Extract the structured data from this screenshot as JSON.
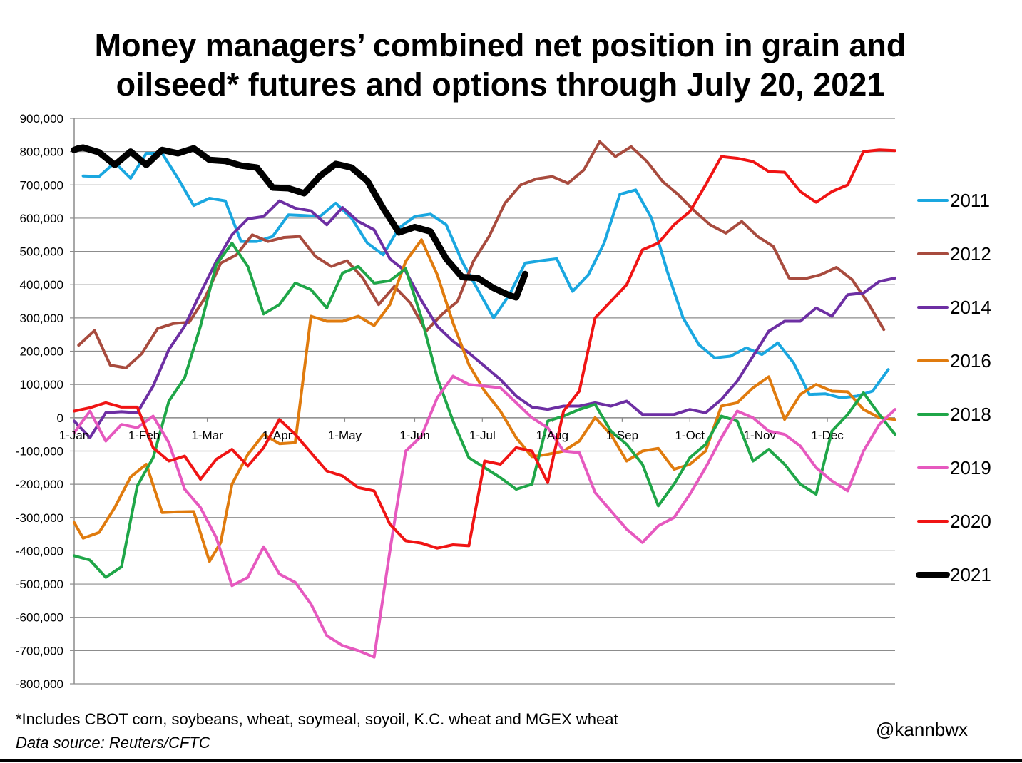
{
  "header": {
    "title_line1": "Money managers’ combined net position in grain and",
    "title_line2": "oilseed* futures and options through July 20, 2021"
  },
  "footer": {
    "note": "*Includes CBOT corn, soybeans, wheat, soymeal, soyoil, K.C. wheat and MGEX wheat",
    "source": "Data source: Reuters/CFTC",
    "handle": "@kannbwx"
  },
  "chart_data": {
    "type": "line",
    "title": "Money managers’ combined net position in grain and oilseed* futures and options through July 20, 2021",
    "xlabel": "",
    "ylabel": "",
    "x_unit": "day of year",
    "xlim": [
      1,
      365
    ],
    "ylim": [
      -800000,
      900000
    ],
    "grid": true,
    "legend_position": "right",
    "y_ticks": [
      900000,
      800000,
      700000,
      600000,
      500000,
      400000,
      300000,
      200000,
      100000,
      0,
      -100000,
      -200000,
      -300000,
      -400000,
      -500000,
      -600000,
      -700000,
      -800000
    ],
    "y_tick_labels": [
      "900,000",
      "800,000",
      "700,000",
      "600,000",
      "500,000",
      "400,000",
      "300,000",
      "200,000",
      "100,000",
      "0",
      "-100,000",
      "-200,000",
      "-300,000",
      "-400,000",
      "-500,000",
      "-600,000",
      "-700,000",
      "-800,000"
    ],
    "x_tick_labels": [
      "1-Jan",
      "1-Feb",
      "1-Mar",
      "1-Apr",
      "1-May",
      "1-Jun",
      "1-Jul",
      "1-Aug",
      "1-Sep",
      "1-Oct",
      "1-Nov",
      "1-Dec"
    ],
    "x_tick_days": [
      1,
      32,
      60,
      91,
      121,
      152,
      182,
      213,
      244,
      274,
      305,
      335
    ],
    "series": [
      {
        "name": "2011",
        "color": "#1aa7e0",
        "width": 4,
        "x": [
          5,
          12,
          19,
          26,
          33,
          40,
          47,
          54,
          61,
          68,
          75,
          82,
          89,
          96,
          103,
          110,
          117,
          124,
          131,
          138,
          145,
          152,
          159,
          166,
          173,
          180,
          187,
          194,
          201,
          208,
          215,
          222,
          229,
          236,
          243,
          250,
          257,
          264,
          271,
          278,
          285,
          292,
          299,
          306,
          313,
          320,
          327,
          334,
          341,
          348,
          355,
          362
        ],
        "y": [
          727000,
          725000,
          767000,
          720000,
          795000,
          795000,
          720000,
          638000,
          660000,
          652000,
          530000,
          530000,
          545000,
          610000,
          608000,
          605000,
          645000,
          600000,
          525000,
          490000,
          570000,
          605000,
          612000,
          580000,
          470000,
          385000,
          300000,
          370000,
          465000,
          472000,
          478000,
          380000,
          430000,
          525000,
          672000,
          685000,
          600000,
          440000,
          300000,
          220000,
          180000,
          185000,
          210000,
          190000,
          225000,
          165000,
          70000,
          72000,
          60000,
          65000,
          80000,
          145000
        ]
      },
      {
        "name": "2012",
        "color": "#a84b3e",
        "width": 4,
        "x": [
          3,
          10,
          17,
          24,
          31,
          38,
          45,
          52,
          59,
          66,
          73,
          80,
          87,
          94,
          101,
          108,
          115,
          122,
          129,
          136,
          143,
          150,
          157,
          164,
          171,
          178,
          185,
          192,
          199,
          206,
          213,
          220,
          227,
          234,
          241,
          248,
          255,
          262,
          269,
          276,
          283,
          290,
          297,
          304,
          311,
          318,
          325,
          332,
          339,
          346,
          353,
          360
        ],
        "y": [
          218000,
          262000,
          158000,
          150000,
          193000,
          268000,
          283000,
          287000,
          360000,
          465000,
          490000,
          550000,
          530000,
          542000,
          545000,
          485000,
          455000,
          472000,
          420000,
          340000,
          395000,
          345000,
          260000,
          310000,
          350000,
          470000,
          545000,
          645000,
          700000,
          718000,
          725000,
          705000,
          745000,
          830000,
          785000,
          815000,
          770000,
          710000,
          670000,
          622000,
          580000,
          555000,
          590000,
          545000,
          515000,
          420000,
          418000,
          430000,
          452000,
          415000,
          345000,
          265000
        ]
      },
      {
        "name": "2014",
        "color": "#6d2fa3",
        "width": 4,
        "x": [
          1,
          8,
          15,
          22,
          29,
          36,
          43,
          50,
          57,
          64,
          71,
          78,
          85,
          92,
          99,
          106,
          113,
          120,
          127,
          134,
          141,
          148,
          155,
          162,
          169,
          176,
          183,
          190,
          197,
          204,
          211,
          218,
          225,
          232,
          239,
          246,
          253,
          260,
          267,
          274,
          281,
          288,
          295,
          302,
          309,
          316,
          323,
          330,
          337,
          344,
          351,
          358,
          365
        ],
        "y": [
          -10000,
          -60000,
          15000,
          18000,
          15000,
          95000,
          205000,
          275000,
          375000,
          470000,
          550000,
          598000,
          605000,
          652000,
          630000,
          622000,
          580000,
          632000,
          590000,
          565000,
          478000,
          440000,
          352000,
          275000,
          230000,
          195000,
          155000,
          115000,
          65000,
          32000,
          25000,
          35000,
          35000,
          45000,
          35000,
          50000,
          10000,
          10000,
          10000,
          25000,
          15000,
          55000,
          110000,
          185000,
          260000,
          290000,
          290000,
          330000,
          305000,
          370000,
          375000,
          410000,
          420000
        ]
      },
      {
        "name": "2016",
        "color": "#e07b0e",
        "width": 4,
        "x": [
          1,
          5,
          12,
          19,
          26,
          33,
          40,
          47,
          54,
          61,
          66,
          71,
          78,
          85,
          92,
          99,
          106,
          113,
          120,
          127,
          134,
          141,
          148,
          155,
          162,
          169,
          176,
          183,
          190,
          197,
          204,
          211,
          218,
          225,
          232,
          239,
          246,
          253,
          260,
          267,
          274,
          281,
          288,
          295,
          302,
          309,
          316,
          323,
          330,
          337,
          344,
          351,
          358,
          365
        ],
        "y": [
          -315000,
          -362000,
          -345000,
          -270000,
          -178000,
          -140000,
          -285000,
          -283000,
          -282000,
          -432000,
          -375000,
          -200000,
          -110000,
          -50000,
          -78000,
          -75000,
          305000,
          290000,
          290000,
          305000,
          277000,
          340000,
          470000,
          535000,
          430000,
          285000,
          160000,
          80000,
          20000,
          -60000,
          -117000,
          -110000,
          -100000,
          -70000,
          0,
          -50000,
          -130000,
          -100000,
          -92000,
          -155000,
          -140000,
          -100000,
          35000,
          45000,
          90000,
          123000,
          -5000,
          70000,
          100000,
          80000,
          78000,
          25000,
          0,
          -5000
        ]
      },
      {
        "name": "2018",
        "color": "#1fa648",
        "width": 4,
        "x": [
          1,
          8,
          15,
          22,
          29,
          36,
          43,
          50,
          57,
          64,
          71,
          78,
          85,
          92,
          99,
          106,
          113,
          120,
          127,
          134,
          141,
          148,
          155,
          162,
          169,
          176,
          183,
          190,
          197,
          204,
          211,
          218,
          225,
          232,
          239,
          246,
          253,
          260,
          267,
          274,
          281,
          288,
          295,
          302,
          309,
          316,
          323,
          330,
          337,
          344,
          351,
          358,
          365
        ],
        "y": [
          -415000,
          -428000,
          -480000,
          -448000,
          -205000,
          -120000,
          50000,
          120000,
          275000,
          460000,
          525000,
          455000,
          312000,
          340000,
          405000,
          385000,
          330000,
          435000,
          455000,
          405000,
          412000,
          448000,
          300000,
          120000,
          -10000,
          -120000,
          -150000,
          -180000,
          -215000,
          -200000,
          -10000,
          5000,
          25000,
          40000,
          -40000,
          -80000,
          -140000,
          -265000,
          -200000,
          -120000,
          -80000,
          5000,
          -10000,
          -130000,
          -95000,
          -140000,
          -200000,
          -230000,
          -40000,
          10000,
          75000,
          10000,
          -50000
        ]
      },
      {
        "name": "2019",
        "color": "#e659bf",
        "width": 4,
        "x": [
          1,
          8,
          15,
          22,
          29,
          36,
          43,
          50,
          57,
          64,
          71,
          78,
          85,
          92,
          99,
          106,
          113,
          120,
          127,
          134,
          141,
          148,
          155,
          162,
          169,
          176,
          183,
          190,
          197,
          204,
          211,
          218,
          225,
          232,
          239,
          246,
          253,
          260,
          267,
          274,
          281,
          288,
          295,
          302,
          309,
          316,
          323,
          330,
          337,
          344,
          351,
          358,
          365
        ],
        "y": [
          -45000,
          20000,
          -70000,
          -20000,
          -30000,
          5000,
          -75000,
          -215000,
          -270000,
          -360000,
          -505000,
          -480000,
          -388000,
          -470000,
          -495000,
          -560000,
          -655000,
          -685000,
          -700000,
          -720000,
          -400000,
          -100000,
          -55000,
          60000,
          125000,
          100000,
          95000,
          90000,
          45000,
          0,
          -30000,
          -100000,
          -105000,
          -225000,
          -280000,
          -335000,
          -375000,
          -325000,
          -300000,
          -230000,
          -150000,
          -60000,
          20000,
          0,
          -40000,
          -50000,
          -85000,
          -150000,
          -190000,
          -220000,
          -100000,
          -20000,
          25000
        ]
      },
      {
        "name": "2020",
        "color": "#f01414",
        "width": 4,
        "x": [
          1,
          8,
          15,
          22,
          29,
          36,
          43,
          50,
          57,
          64,
          71,
          78,
          85,
          92,
          99,
          106,
          113,
          120,
          127,
          134,
          141,
          148,
          155,
          162,
          169,
          176,
          183,
          190,
          197,
          204,
          211,
          218,
          225,
          232,
          239,
          246,
          253,
          260,
          267,
          274,
          281,
          288,
          295,
          302,
          309,
          316,
          323,
          330,
          337,
          344,
          351,
          358,
          365
        ],
        "y": [
          20000,
          30000,
          45000,
          32000,
          32000,
          -90000,
          -130000,
          -115000,
          -185000,
          -125000,
          -95000,
          -145000,
          -90000,
          -5000,
          -50000,
          -105000,
          -160000,
          -175000,
          -210000,
          -220000,
          -320000,
          -370000,
          -377000,
          -392000,
          -382000,
          -385000,
          -130000,
          -140000,
          -90000,
          -100000,
          -195000,
          20000,
          80000,
          300000,
          350000,
          400000,
          505000,
          525000,
          580000,
          620000,
          700000,
          785000,
          780000,
          770000,
          740000,
          738000,
          680000,
          648000,
          680000,
          700000,
          800000,
          805000,
          803000
        ]
      },
      {
        "name": "2021",
        "color": "#000000",
        "width": 9,
        "x": [
          1,
          3,
          5,
          12,
          19,
          26,
          33,
          40,
          47,
          54,
          61,
          68,
          75,
          82,
          89,
          96,
          103,
          110,
          117,
          124,
          131,
          138,
          145,
          152,
          159,
          166,
          173,
          180,
          187,
          194,
          197,
          201
        ],
        "y": [
          805000,
          810000,
          812000,
          798000,
          760000,
          800000,
          760000,
          805000,
          795000,
          810000,
          775000,
          772000,
          758000,
          752000,
          692000,
          690000,
          675000,
          727000,
          763000,
          752000,
          712000,
          630000,
          557000,
          573000,
          560000,
          478000,
          423000,
          420000,
          390000,
          368000,
          362000,
          432000
        ]
      }
    ]
  }
}
